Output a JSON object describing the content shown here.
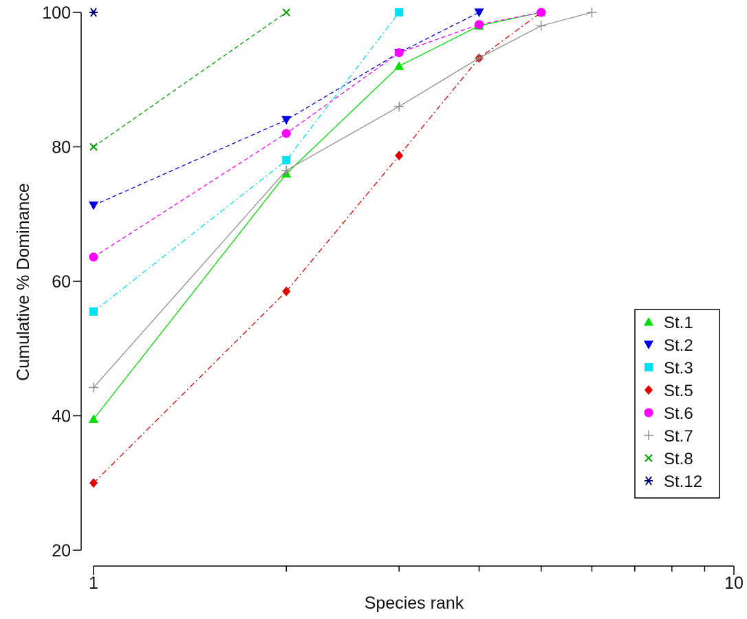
{
  "chart_data": {
    "type": "line",
    "title": "",
    "xlabel": "Species rank",
    "ylabel": "Cumulative % Dominance",
    "xscale": "log",
    "xlim": [
      1,
      10
    ],
    "ylim": [
      20,
      100
    ],
    "x_tick_labels": [
      "1",
      "10"
    ],
    "y_ticks": [
      20,
      40,
      60,
      80,
      100
    ],
    "y_tick_labels": [
      "20",
      "40",
      "60",
      "80",
      "100"
    ],
    "grid": false,
    "legend_position": "bottom-right",
    "series": [
      {
        "name": "St.1",
        "color": "#00e000",
        "marker": "triangle-up",
        "line": "solid",
        "x": [
          1,
          2,
          3,
          4,
          5
        ],
        "y": [
          39.5,
          76,
          92,
          98,
          100
        ]
      },
      {
        "name": "St.2",
        "color": "#0000e0",
        "marker": "triangle-down",
        "line": "dashed",
        "x": [
          1,
          2,
          3,
          4
        ],
        "y": [
          71.3,
          84,
          94,
          100
        ]
      },
      {
        "name": "St.3",
        "color": "#00e0f0",
        "marker": "square",
        "line": "dashdot",
        "x": [
          1,
          2,
          3
        ],
        "y": [
          55.5,
          78,
          100
        ]
      },
      {
        "name": "St.5",
        "color": "#e00000",
        "marker": "diamond",
        "line": "dashdot",
        "x": [
          1,
          2,
          3,
          4,
          5
        ],
        "y": [
          30,
          58.5,
          78.7,
          93.2,
          100
        ]
      },
      {
        "name": "St.6",
        "color": "#ff00ff",
        "marker": "circle",
        "line": "dashed",
        "x": [
          1,
          2,
          3,
          4,
          5
        ],
        "y": [
          63.6,
          82,
          94,
          98.2,
          100
        ]
      },
      {
        "name": "St.7",
        "color": "#909090",
        "marker": "plus",
        "line": "solid",
        "x": [
          1,
          2,
          3,
          4,
          5,
          6
        ],
        "y": [
          44.2,
          76.5,
          86,
          93.2,
          98,
          100
        ]
      },
      {
        "name": "St.8",
        "color": "#00a000",
        "marker": "cross",
        "line": "dashed",
        "x": [
          1,
          2
        ],
        "y": [
          80,
          100
        ]
      },
      {
        "name": "St.12",
        "color": "#00007f",
        "marker": "asterisk",
        "line": "solid",
        "x": [
          1
        ],
        "y": [
          100
        ]
      }
    ]
  }
}
